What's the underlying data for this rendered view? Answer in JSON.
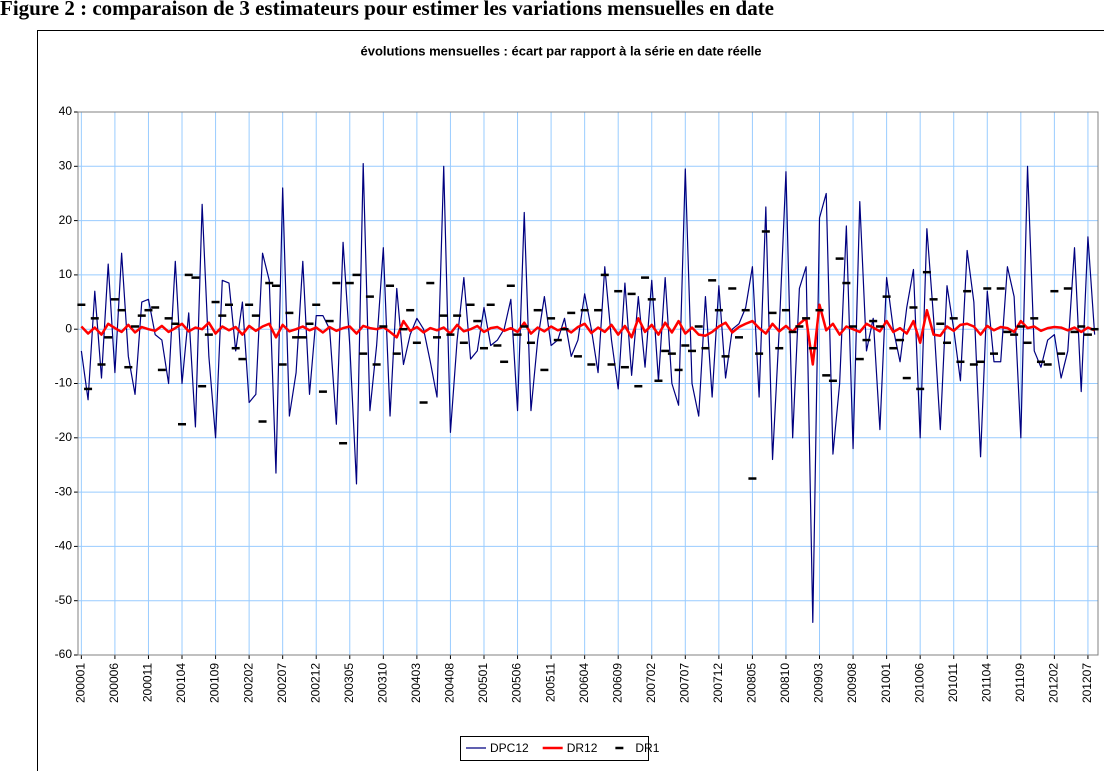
{
  "page_title": "Figure 2 : comparaison de 3 estimateurs pour estimer les variations mensuelles en date",
  "chart_data": {
    "type": "line",
    "title": "évolutions mensuelles : écart par rapport à la série en date réelle",
    "categories": [
      "200001",
      null,
      null,
      null,
      null,
      "200006",
      null,
      null,
      null,
      null,
      "200011",
      null,
      null,
      null,
      null,
      "200104",
      null,
      null,
      null,
      null,
      "200109",
      null,
      null,
      null,
      null,
      "200202",
      null,
      null,
      null,
      null,
      "200207",
      null,
      null,
      null,
      null,
      "200212",
      null,
      null,
      null,
      null,
      "200305",
      null,
      null,
      null,
      null,
      "200310",
      null,
      null,
      null,
      null,
      "200403",
      null,
      null,
      null,
      null,
      "200408",
      null,
      null,
      null,
      null,
      "200501",
      null,
      null,
      null,
      null,
      "200506",
      null,
      null,
      null,
      null,
      "200511",
      null,
      null,
      null,
      null,
      "200604",
      null,
      null,
      null,
      null,
      "200609",
      null,
      null,
      null,
      null,
      "200702",
      null,
      null,
      null,
      null,
      "200707",
      null,
      null,
      null,
      null,
      "200712",
      null,
      null,
      null,
      null,
      "200805",
      null,
      null,
      null,
      null,
      "200810",
      null,
      null,
      null,
      null,
      "200903",
      null,
      null,
      null,
      null,
      "200908",
      null,
      null,
      null,
      null,
      "201001",
      null,
      null,
      null,
      null,
      "201006",
      null,
      null,
      null,
      null,
      "201011",
      null,
      null,
      null,
      null,
      "201104",
      null,
      null,
      null,
      null,
      "201109",
      null,
      null,
      null,
      null,
      "201202",
      null,
      null,
      null,
      null,
      "201207",
      null
    ],
    "series": [
      {
        "name": "DPC12",
        "color": "#000080",
        "style": "line",
        "width": 1.2,
        "values": [
          -4,
          -13,
          7,
          -9,
          12,
          -8,
          14,
          -5,
          -12,
          5,
          5.5,
          -1,
          -2,
          -10,
          12.5,
          -10,
          3,
          -18,
          23,
          -5,
          -20,
          9,
          8.5,
          -4,
          5,
          -13.5,
          -12,
          14,
          9,
          -26.5,
          26,
          -16,
          -8,
          12.5,
          -12,
          2.5,
          2.5,
          0,
          -17.5,
          16,
          -3,
          -28.5,
          30.5,
          -15,
          -3,
          15,
          -16,
          7.5,
          -6.5,
          -1,
          2,
          0,
          -6,
          -12.5,
          30,
          -19,
          -2,
          9.5,
          -5.5,
          -4,
          4,
          -3,
          -2,
          0,
          5.5,
          -15,
          21.5,
          -15,
          -2,
          6,
          -3,
          -2,
          2,
          -5,
          -2,
          6.5,
          0,
          -8,
          11.5,
          -2,
          -11,
          8.5,
          -8.5,
          6,
          -7,
          9,
          -9.5,
          9.5,
          -10,
          -14,
          29.5,
          -10,
          -16,
          6,
          -12.5,
          8,
          -9,
          0,
          1,
          4,
          11.5,
          -12.5,
          22.5,
          -24,
          0,
          29,
          -20,
          7.5,
          11.5,
          -54,
          20.5,
          25,
          -23,
          -10,
          19,
          -22,
          23.5,
          -4,
          2,
          -18.5,
          9.5,
          0,
          -6,
          4,
          11,
          -20,
          18.5,
          2,
          -18.5,
          8,
          0,
          -9.5,
          14.5,
          5,
          -23.5,
          7,
          -6,
          -6,
          11.5,
          6,
          -20,
          30,
          -4,
          -7,
          -2,
          -1,
          -9,
          -4,
          15,
          -11.5,
          17,
          -1
        ]
      },
      {
        "name": "DR12",
        "color": "#ff0000",
        "style": "line",
        "width": 2.5,
        "values": [
          0.5,
          -0.8,
          0.3,
          -1,
          1,
          0.2,
          -0.5,
          0.8,
          -0.6,
          0.4,
          0,
          -0.3,
          0.6,
          -0.5,
          0.2,
          1,
          -0.4,
          0.3,
          0,
          1.2,
          -0.8,
          0.5,
          -0.2,
          0.4,
          -1,
          0.6,
          -0.3,
          0.5,
          1,
          -1.5,
          0.8,
          -0.4,
          0,
          0.5,
          -0.2,
          0.3,
          -0.6,
          0.4,
          -0.3,
          0.2,
          0.5,
          -0.8,
          0.6,
          0.2,
          0,
          0.4,
          -0.5,
          -1.5,
          1.5,
          -0.3,
          0.4,
          -0.6,
          0.2,
          -0.2,
          0.3,
          -0.8,
          0.8,
          -0.4,
          0,
          0.6,
          -0.5,
          0.2,
          0.4,
          -0.3,
          0.2,
          -0.5,
          1.2,
          -0.8,
          0.3,
          -0.4,
          0.5,
          -0.2,
          0.2,
          -0.6,
          0.4,
          1,
          -0.7,
          0.3,
          -0.5,
          0.8,
          -1,
          0.6,
          -1.5,
          2,
          -0.5,
          0.8,
          -1,
          1.2,
          -0.6,
          1.5,
          -0.8,
          0.3,
          -1,
          -1.2,
          -0.5,
          0.5,
          1.2,
          -0.6,
          0.4,
          1,
          1.5,
          0.2,
          -0.8,
          1,
          -0.4,
          0.6,
          -0.5,
          1,
          2,
          -6.5,
          4.5,
          -0.2,
          1,
          -1,
          0.5,
          0,
          -0.5,
          1,
          0.3,
          -0.4,
          1.5,
          -0.5,
          0.2,
          -0.8,
          1.5,
          -2.5,
          3.5,
          -1,
          -1.2,
          0.5,
          -0.3,
          0.8,
          1,
          0.5,
          -1,
          0.6,
          -0.2,
          0.4,
          0.2,
          -0.5,
          1.5,
          0.2,
          0.5,
          -0.3,
          0.2,
          0.4,
          0.3,
          -0.2,
          0.3,
          -0.5,
          0.3,
          -0.2
        ]
      },
      {
        "name": "DR1",
        "color": "#000000",
        "style": "dash",
        "width": 2.5,
        "values": [
          4.5,
          -11,
          2,
          -6.5,
          -1.5,
          5.5,
          3.5,
          -7,
          0.5,
          2.5,
          3.5,
          4,
          -7.5,
          2,
          1,
          -17.5,
          10,
          9.5,
          -10.5,
          -1,
          5,
          2.5,
          4.5,
          -3.5,
          -5.5,
          4.5,
          2.5,
          -17,
          8.5,
          8,
          -6.5,
          3,
          -1.5,
          -1.5,
          1,
          4.5,
          -11.5,
          1.5,
          8.5,
          -21,
          8.5,
          10,
          -4.5,
          6,
          -6.5,
          0.5,
          8,
          -4.5,
          0,
          3.5,
          -2.5,
          -13.5,
          8.5,
          -1.5,
          2.5,
          -1,
          2.5,
          -2.5,
          4.5,
          1.5,
          -3.5,
          4.5,
          -3,
          -6,
          8,
          -1,
          0.5,
          -2.5,
          3.5,
          -7.5,
          2,
          -2,
          0,
          3,
          -5,
          3.5,
          -6.5,
          3.5,
          10,
          -6.5,
          7,
          -7,
          6.5,
          -10.5,
          9.5,
          5.5,
          -9.5,
          -4,
          -4.5,
          -7.5,
          -3,
          -4,
          0.5,
          -3.5,
          9,
          3.5,
          -5,
          7.5,
          -1.5,
          3.5,
          -27.5,
          -4.5,
          18,
          3,
          -3.5,
          3.5,
          -0.5,
          0.5,
          2,
          -3.5,
          3.5,
          -8.5,
          -9.5,
          13,
          8.5,
          0.5,
          -5.5,
          -2,
          1.5,
          0.5,
          6,
          -3.5,
          -2,
          -9,
          4,
          -11,
          10.5,
          5.5,
          1,
          -2.5,
          2,
          -6,
          7,
          -6.5,
          -6,
          7.5,
          -4.5,
          7.5,
          -0.5,
          -1,
          0.5,
          -2.5,
          2,
          -6,
          -6.5,
          7,
          -4.5,
          7.5,
          -0.5,
          0.5,
          -1,
          0
        ]
      }
    ],
    "ylim": [
      -60,
      40
    ],
    "yticks": [
      -60,
      -50,
      -40,
      -30,
      -20,
      -10,
      0,
      10,
      20,
      30,
      40
    ],
    "grid": true,
    "grid_color": "#99ccff",
    "legend": "bottom"
  }
}
